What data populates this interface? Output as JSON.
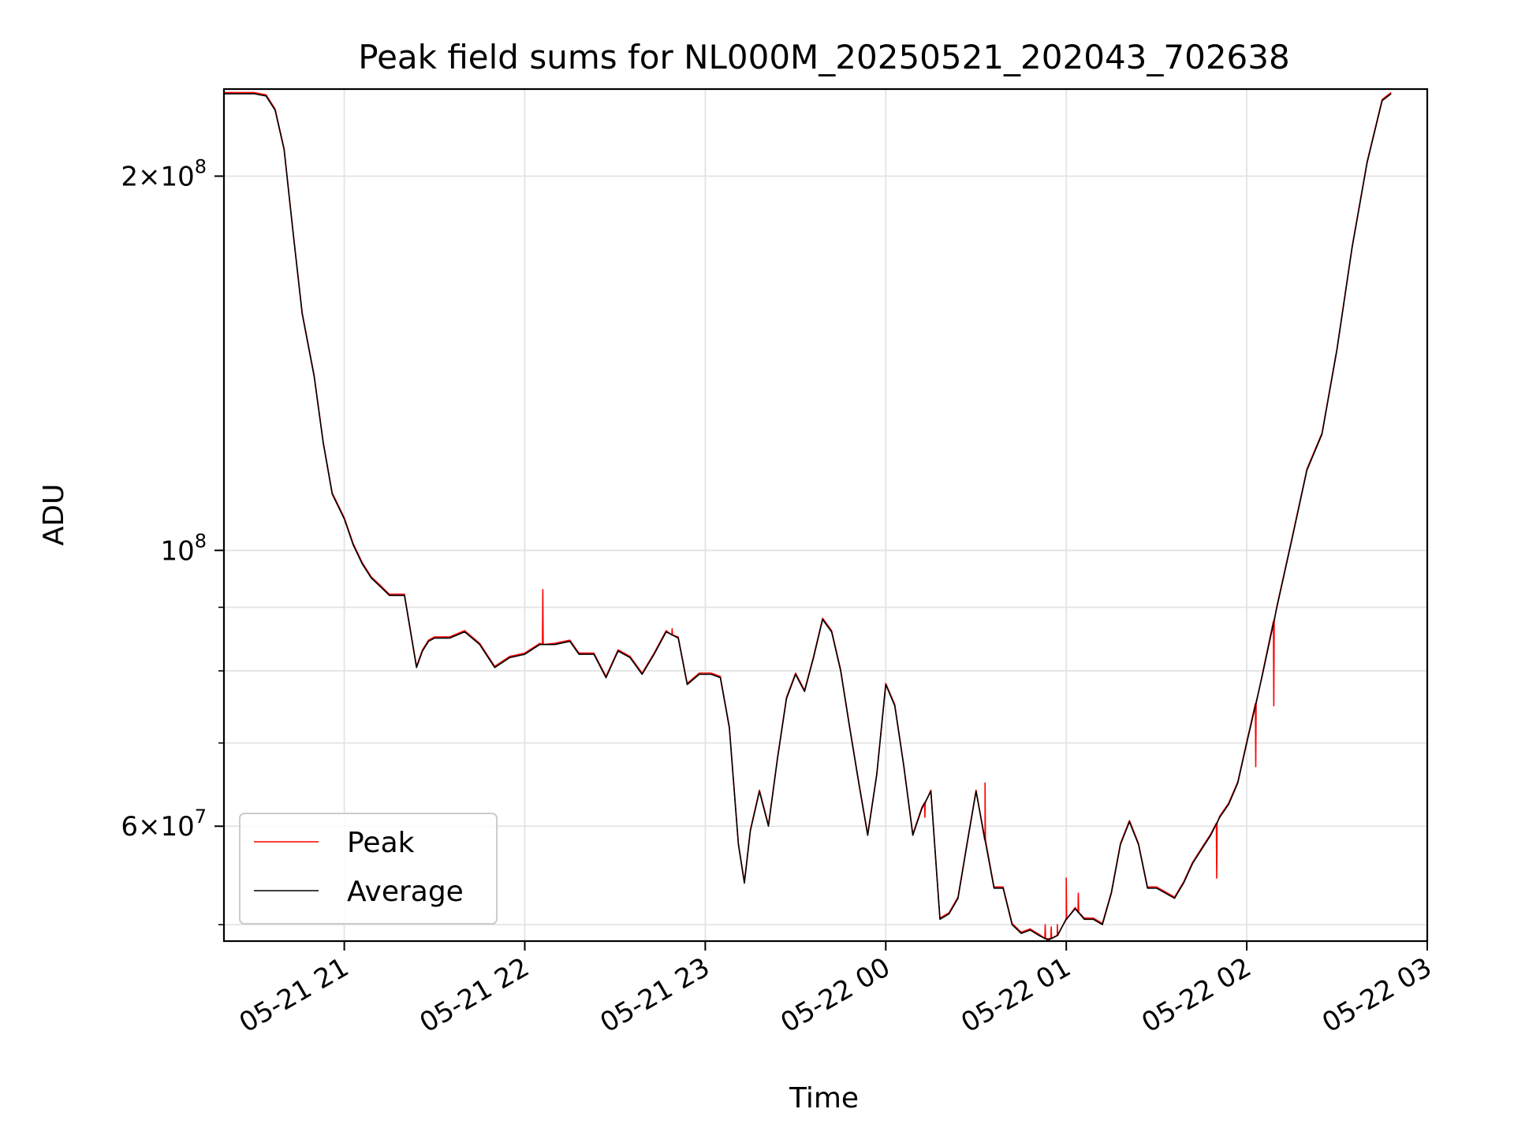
{
  "chart_data": {
    "type": "line",
    "title": "Peak field sums for NL000M_20250521_202043_702638",
    "xlabel": "Time",
    "ylabel": "ADU",
    "y_scale": "log",
    "xlim": [
      "2025-05-21 20:20",
      "2025-05-22 03:00"
    ],
    "ylim": [
      48500000,
      235000000
    ],
    "grid": true,
    "legend_position": "lower-left",
    "x_ticks": [
      {
        "value": "2025-05-21 21:00",
        "label": "05-21 21"
      },
      {
        "value": "2025-05-21 22:00",
        "label": "05-21 22"
      },
      {
        "value": "2025-05-21 23:00",
        "label": "05-21 23"
      },
      {
        "value": "2025-05-22 00:00",
        "label": "05-22 00"
      },
      {
        "value": "2025-05-22 01:00",
        "label": "05-22 01"
      },
      {
        "value": "2025-05-22 02:00",
        "label": "05-22 02"
      },
      {
        "value": "2025-05-22 03:00",
        "label": "05-22 03"
      }
    ],
    "y_major_ticks": [
      {
        "value": 60000000,
        "mantissa": "6",
        "exponent": "7"
      },
      {
        "value": 100000000,
        "mantissa": "",
        "exponent": "8"
      },
      {
        "value": 200000000,
        "mantissa": "2",
        "exponent": "8"
      }
    ],
    "y_minor_ticks": [
      50000000,
      70000000,
      80000000,
      90000000
    ],
    "series": [
      {
        "name": "Average",
        "color": "#000000",
        "x": [
          "2025-05-21 20:20",
          "2025-05-21 20:30",
          "2025-05-21 20:34",
          "2025-05-21 20:37",
          "2025-05-21 20:40",
          "2025-05-21 20:43",
          "2025-05-21 20:46",
          "2025-05-21 20:50",
          "2025-05-21 20:53",
          "2025-05-21 20:56",
          "2025-05-21 21:00",
          "2025-05-21 21:03",
          "2025-05-21 21:06",
          "2025-05-21 21:09",
          "2025-05-21 21:12",
          "2025-05-21 21:15",
          "2025-05-21 21:20",
          "2025-05-21 21:24",
          "2025-05-21 21:26",
          "2025-05-21 21:28",
          "2025-05-21 21:30",
          "2025-05-21 21:35",
          "2025-05-21 21:40",
          "2025-05-21 21:45",
          "2025-05-21 21:50",
          "2025-05-21 21:55",
          "2025-05-21 22:00",
          "2025-05-21 22:05",
          "2025-05-21 22:10",
          "2025-05-21 22:15",
          "2025-05-21 22:18",
          "2025-05-21 22:23",
          "2025-05-21 22:27",
          "2025-05-21 22:31",
          "2025-05-21 22:35",
          "2025-05-21 22:39",
          "2025-05-21 22:43",
          "2025-05-21 22:47",
          "2025-05-21 22:51",
          "2025-05-21 22:54",
          "2025-05-21 22:58",
          "2025-05-21 23:02",
          "2025-05-21 23:05",
          "2025-05-21 23:08",
          "2025-05-21 23:11",
          "2025-05-21 23:13",
          "2025-05-21 23:15",
          "2025-05-21 23:18",
          "2025-05-21 23:21",
          "2025-05-21 23:24",
          "2025-05-21 23:27",
          "2025-05-21 23:30",
          "2025-05-21 23:33",
          "2025-05-21 23:36",
          "2025-05-21 23:39",
          "2025-05-21 23:42",
          "2025-05-21 23:45",
          "2025-05-21 23:48",
          "2025-05-21 23:51",
          "2025-05-21 23:54",
          "2025-05-21 23:57",
          "2025-05-22 00:00",
          "2025-05-22 00:03",
          "2025-05-22 00:06",
          "2025-05-22 00:09",
          "2025-05-22 00:12",
          "2025-05-22 00:15",
          "2025-05-22 00:18",
          "2025-05-22 00:21",
          "2025-05-22 00:24",
          "2025-05-22 00:27",
          "2025-05-22 00:30",
          "2025-05-22 00:33",
          "2025-05-22 00:36",
          "2025-05-22 00:39",
          "2025-05-22 00:42",
          "2025-05-22 00:45",
          "2025-05-22 00:48",
          "2025-05-22 00:51",
          "2025-05-22 00:54",
          "2025-05-22 00:57",
          "2025-05-22 01:00",
          "2025-05-22 01:03",
          "2025-05-22 01:06",
          "2025-05-22 01:09",
          "2025-05-22 01:12",
          "2025-05-22 01:15",
          "2025-05-22 01:18",
          "2025-05-22 01:21",
          "2025-05-22 01:24",
          "2025-05-22 01:27",
          "2025-05-22 01:30",
          "2025-05-22 01:33",
          "2025-05-22 01:36",
          "2025-05-22 01:39",
          "2025-05-22 01:42",
          "2025-05-22 01:45",
          "2025-05-22 01:48",
          "2025-05-22 01:51",
          "2025-05-22 01:54",
          "2025-05-22 01:57",
          "2025-05-22 02:00",
          "2025-05-22 02:05",
          "2025-05-22 02:10",
          "2025-05-22 02:15",
          "2025-05-22 02:20",
          "2025-05-22 02:25",
          "2025-05-22 02:30",
          "2025-05-22 02:35",
          "2025-05-22 02:40",
          "2025-05-22 02:45",
          "2025-05-22 02:48"
        ],
        "y": [
          233000000,
          233000000,
          232000000,
          226000000,
          210000000,
          180000000,
          155000000,
          138000000,
          122000000,
          111000000,
          106000000,
          101000000,
          97500000,
          95000000,
          93500000,
          92000000,
          92000000,
          80500000,
          83000000,
          84500000,
          85000000,
          85000000,
          86000000,
          84000000,
          80500000,
          82000000,
          82500000,
          84000000,
          84000000,
          84500000,
          82500000,
          82500000,
          79000000,
          83000000,
          82000000,
          79500000,
          82500000,
          86000000,
          85000000,
          78000000,
          79500000,
          79500000,
          79000000,
          72000000,
          58000000,
          54000000,
          59500000,
          64000000,
          60000000,
          68000000,
          76000000,
          79500000,
          77000000,
          82000000,
          88000000,
          86000000,
          80000000,
          72000000,
          65000000,
          59000000,
          66000000,
          78000000,
          75000000,
          67000000,
          59000000,
          62000000,
          64000000,
          50500000,
          51000000,
          52500000,
          58000000,
          64000000,
          58500000,
          53500000,
          53500000,
          50000000,
          49200000,
          49500000,
          49000000,
          48600000,
          49000000,
          50500000,
          51500000,
          50500000,
          50500000,
          50000000,
          53000000,
          58000000,
          60500000,
          58000000,
          53500000,
          53500000,
          53000000,
          52500000,
          54000000,
          56000000,
          57500000,
          59000000,
          61000000,
          62500000,
          65000000,
          70000000,
          79000000,
          90000000,
          102000000,
          116000000,
          124000000,
          145000000,
          175000000,
          205000000,
          230000000,
          233000000
        ]
      },
      {
        "name": "Peak",
        "color": "#ff0000",
        "spikes": [
          {
            "x": "2025-05-21 22:06",
            "y": 93000000
          },
          {
            "x": "2025-05-21 22:49",
            "y": 86500000
          },
          {
            "x": "2025-05-22 01:00",
            "y": 54500000
          },
          {
            "x": "2025-05-22 00:57",
            "y": 50000000
          },
          {
            "x": "2025-05-22 00:55",
            "y": 49800000
          },
          {
            "x": "2025-05-22 00:53",
            "y": 50000000
          },
          {
            "x": "2025-05-22 01:04",
            "y": 53000000
          },
          {
            "x": "2025-05-22 00:33",
            "y": 65000000
          },
          {
            "x": "2025-05-22 00:13",
            "y": 61000000
          },
          {
            "x": "2025-05-22 01:50",
            "y": 54500000
          },
          {
            "x": "2025-05-22 02:03",
            "y": 67000000
          },
          {
            "x": "2025-05-22 02:09",
            "y": 75000000
          }
        ]
      }
    ]
  }
}
